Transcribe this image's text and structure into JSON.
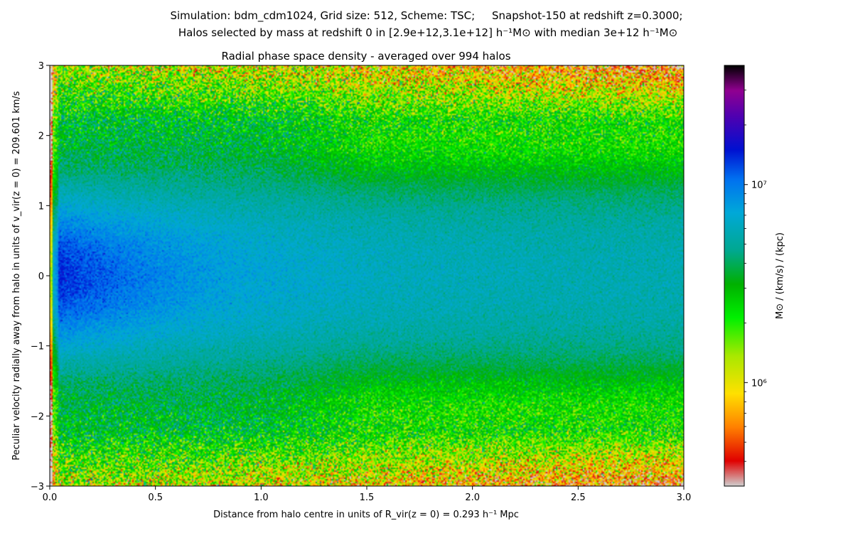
{
  "figure": {
    "suptitle_line1": "Simulation: bdm_cdm1024, Grid size: 512, Scheme: TSC;     Snapshot-150 at redshift z=0.3000;",
    "suptitle_line2": "Halos selected by mass at redshift 0 in [2.9e+12,3.1e+12] h⁻¹M⊙ with median 3e+12 h⁻¹M⊙"
  },
  "chart_data": {
    "type": "heatmap",
    "title": "Radial phase space density - averaged over 994 halos",
    "xlabel": "Distance from halo centre in units of  R_vir(z = 0) = 0.293 h⁻¹ Mpc",
    "ylabel": "Peculiar velocity radially away from halo in units of  v_vir(z = 0) = 209.601 km/s",
    "xlim": [
      0.0,
      3.0
    ],
    "ylim": [
      -3,
      3
    ],
    "x_ticks": [
      0.0,
      0.5,
      1.0,
      1.5,
      2.0,
      2.5,
      3.0
    ],
    "x_tick_labels": [
      "0.0",
      "0.5",
      "1.0",
      "1.5",
      "2.0",
      "2.5",
      "3.0"
    ],
    "y_ticks": [
      -3,
      -2,
      -1,
      0,
      1,
      2,
      3
    ],
    "y_tick_labels": [
      "−3",
      "−2",
      "−1",
      "0",
      "1",
      "2",
      "3"
    ],
    "colorbar": {
      "label": "M⊙ / (km/s) / (kpc)",
      "scale": "log",
      "range": [
        300000,
        40000000
      ],
      "ticks": [
        1000000,
        10000000
      ],
      "tick_labels": [
        "10⁶",
        "10⁷"
      ],
      "colormap": [
        "#cfcfcf",
        "#e00000",
        "#ff8000",
        "#ffe000",
        "#a8e800",
        "#00f000",
        "#00b000",
        "#00a890",
        "#00a8d8",
        "#0070f0",
        "#0010d0",
        "#5000b0",
        "#900090",
        "#000000"
      ]
    },
    "density_summary": [
      {
        "region": "inner radii r<0.1, |v|<0.5",
        "approx_value": 25000000
      },
      {
        "region": "r 0.1-0.7, |v|<1",
        "approx_value": 15000000
      },
      {
        "region": "r 1-3, v near 0",
        "approx_value": 6000000
      },
      {
        "region": "r 1.5-3, v near ±2",
        "approx_value": 2500000
      },
      {
        "region": "r 2-3, v near ±3",
        "approx_value": 800000
      }
    ],
    "grid": false
  }
}
